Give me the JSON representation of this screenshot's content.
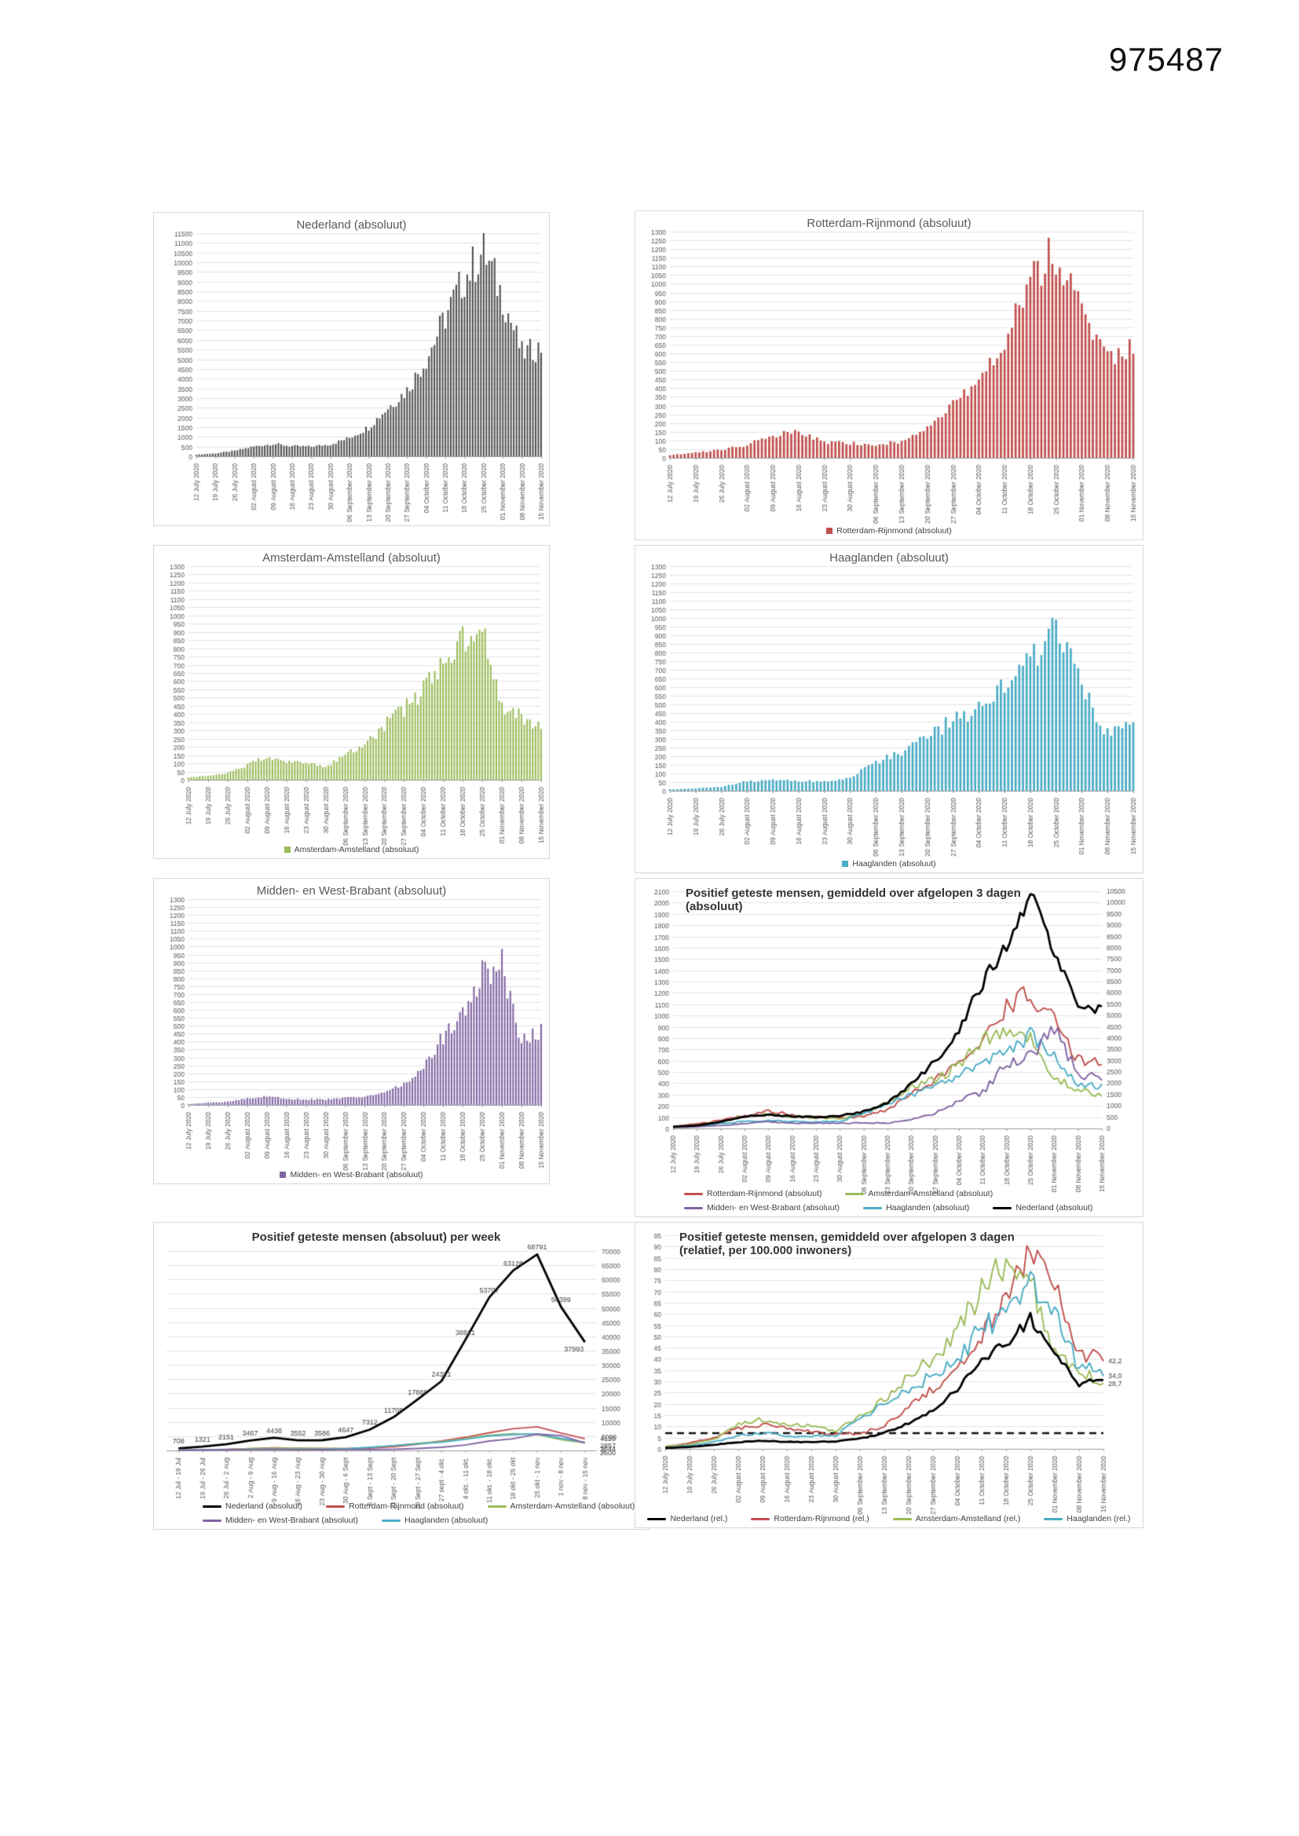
{
  "page": {
    "document_number": "975487"
  },
  "colors": {
    "nederland_bar": "#4d4d4d",
    "rotterdam": "#c0504d",
    "amsterdam": "#9bbb59",
    "haaglanden": "#4bacc6",
    "midden_west_brabant": "#8064a2",
    "nederland_line": "#000000",
    "gridline": "#e2e2e2",
    "axis_text": "#595959"
  },
  "chart_data": {
    "x_tick_labels_daily": [
      "12 July 2020",
      "19 July 2020",
      "26 July 2020",
      "02 August 2020",
      "09 August 2020",
      "16 August 2020",
      "23 August 2020",
      "30 August 2020",
      "06 September 2020",
      "13 September 2020",
      "20 September 2020",
      "27 September 2020",
      "04 October 2020",
      "11 October 2020",
      "18 October 2020",
      "25 October 2020",
      "01 November 2020",
      "08 November 2020",
      "15 November 2020"
    ],
    "x_tick_labels_weekly": [
      "12 Jul - 19 Jul",
      "19 Jul - 26 Jul",
      "26 Jul - 2 Aug",
      "2 Aug - 9 Aug",
      "9 Aug - 16 Aug",
      "16 Aug - 23 Aug",
      "23 Aug - 30 Aug",
      "30 Aug - 6 Sept",
      "6 Sept - 13 Sept",
      "13 Sept - 20 Sept",
      "20 Sept - 27 Sept",
      "27 sept - 4 okt.",
      "4 okt. - 11 okt.",
      "11 okt. - 18 okt.",
      "18 okt - 25 okt",
      "25 okt - 1 nov",
      "1 nov - 8 nov",
      "8 nov - 15 nov"
    ],
    "charts": [
      {
        "id": "nederland-absoluut",
        "type": "bar",
        "title": "Nederland (absoluut)",
        "y_axis": {
          "min": 0,
          "max": 11500,
          "step": 500,
          "side": "left"
        },
        "x_labels": "daily",
        "legend": [],
        "series": [
          {
            "name": "Nederland (absoluut)",
            "color_key": "nederland_bar",
            "weekly_anchor_values": [
              80,
              150,
              280,
              500,
              640,
              520,
              500,
              620,
              950,
              1500,
              2500,
              3400,
              5000,
              7200,
              9200,
              10600,
              8200,
              5300,
              5600
            ]
          }
        ]
      },
      {
        "id": "rotterdam-rijnmond-absoluut",
        "type": "bar",
        "title": "Rotterdam-Rijnmond (absoluut)",
        "y_axis": {
          "min": 0,
          "max": 1300,
          "step": 50,
          "side": "left"
        },
        "x_labels": "daily",
        "legend": [
          {
            "label": "Rotterdam-Rijnmond (absoluut)",
            "color_key": "rotterdam",
            "shape": "square"
          }
        ],
        "series": [
          {
            "name": "Rotterdam-Rijnmond (absoluut)",
            "color_key": "rotterdam",
            "weekly_anchor_values": [
              15,
              30,
              45,
              75,
              130,
              150,
              90,
              85,
              75,
              95,
              170,
              330,
              460,
              700,
              1020,
              1180,
              920,
              560,
              640
            ]
          }
        ]
      },
      {
        "id": "amsterdam-amstelland-absoluut",
        "type": "bar",
        "title": "Amsterdam-Amstelland (absoluut)",
        "y_axis": {
          "min": 0,
          "max": 1300,
          "step": 50,
          "side": "left"
        },
        "x_labels": "daily",
        "legend": [
          {
            "label": "Amsterdam-Amstelland (absoluut)",
            "color_key": "amsterdam",
            "shape": "square"
          }
        ],
        "series": [
          {
            "name": "Amsterdam-Amstelland (absoluut)",
            "color_key": "amsterdam",
            "weekly_anchor_values": [
              15,
              25,
              40,
              90,
              140,
              115,
              100,
              80,
              150,
              210,
              330,
              430,
              550,
              720,
              850,
              930,
              450,
              380,
              330
            ]
          }
        ]
      },
      {
        "id": "haaglanden-absoluut",
        "type": "bar",
        "title": "Haaglanden (absoluut)",
        "y_axis": {
          "min": 0,
          "max": 1300,
          "step": 50,
          "side": "left"
        },
        "x_labels": "daily",
        "legend": [
          {
            "label": "Haaglanden (absoluut)",
            "color_key": "haaglanden",
            "shape": "square"
          }
        ],
        "series": [
          {
            "name": "Haaglanden (absoluut)",
            "color_key": "haaglanden",
            "weekly_anchor_values": [
              8,
              14,
              22,
              55,
              62,
              58,
              52,
              80,
              160,
              230,
              300,
              420,
              480,
              640,
              760,
              950,
              600,
              330,
              380
            ]
          }
        ]
      },
      {
        "id": "midden-west-brabant-absoluut",
        "type": "bar",
        "title": "Midden- en West-Brabant (absoluut)",
        "y_axis": {
          "min": 0,
          "max": 1300,
          "step": 50,
          "side": "left"
        },
        "x_labels": "daily",
        "legend": [
          {
            "label": "Midden- en West-Brabant (absoluut)",
            "color_key": "midden_west_brabant",
            "shape": "square"
          }
        ],
        "series": [
          {
            "name": "Midden- en West-Brabant (absoluut)",
            "color_key": "midden_west_brabant",
            "weekly_anchor_values": [
              5,
              14,
              20,
              40,
              55,
              38,
              35,
              35,
              45,
              50,
              80,
              135,
              240,
              430,
              560,
              840,
              890,
              400,
              470
            ]
          }
        ]
      },
      {
        "id": "gemiddeld-3-dagen-absoluut",
        "type": "line-daily",
        "title": "Positief geteste mensen, gemiddeld over afgelopen 3 dagen",
        "subtitle": "(absoluut)",
        "y_axis": {
          "min": 0,
          "max": 2100,
          "step": 100,
          "side": "left"
        },
        "y_axis_right": {
          "min": 0,
          "max": 10500,
          "step": 500
        },
        "x_labels": "daily",
        "legend": [
          {
            "label": "Rotterdam-Rijnmond (absoluut)",
            "color_key": "rotterdam",
            "shape": "line"
          },
          {
            "label": "Amsterdam-Amstelland (absoluut)",
            "color_key": "amsterdam",
            "shape": "line"
          },
          {
            "label": "Midden- en West-Brabant (absoluut)",
            "color_key": "midden_west_brabant",
            "shape": "line"
          },
          {
            "label": "Haaglanden (absoluut)",
            "color_key": "haaglanden",
            "shape": "line"
          },
          {
            "label": "Nederland (absoluut)",
            "color_key": "nederland_line",
            "shape": "line"
          }
        ],
        "series": [
          {
            "name": "Rotterdam-Rijnmond (absoluut)",
            "color_key": "rotterdam",
            "axis": "left",
            "weekly_anchor_values": [
              20,
              40,
              70,
              115,
              155,
              120,
              100,
              95,
              105,
              165,
              300,
              430,
              560,
              800,
              1060,
              1190,
              1000,
              600,
              570
            ]
          },
          {
            "name": "Amsterdam-Amstelland (absoluut)",
            "color_key": "amsterdam",
            "axis": "left",
            "weekly_anchor_values": [
              15,
              30,
              60,
              110,
              125,
              108,
              95,
              85,
              145,
              230,
              380,
              430,
              560,
              790,
              900,
              790,
              450,
              340,
              300
            ]
          },
          {
            "name": "Haaglanden (absoluut)",
            "color_key": "haaglanden",
            "axis": "left",
            "weekly_anchor_values": [
              10,
              20,
              45,
              62,
              70,
              62,
              56,
              62,
              130,
              215,
              300,
              380,
              450,
              610,
              660,
              830,
              640,
              390,
              380
            ]
          },
          {
            "name": "Midden- en West-Brabant (absoluut)",
            "color_key": "midden_west_brabant",
            "axis": "left",
            "weekly_anchor_values": [
              8,
              15,
              25,
              45,
              58,
              46,
              48,
              45,
              50,
              48,
              78,
              135,
              250,
              320,
              580,
              640,
              880,
              470,
              460
            ]
          },
          {
            "name": "Nederland (absoluut)",
            "color_key": "nederland_line",
            "axis": "right",
            "thick": true,
            "weekly_anchor_values": [
              75,
              130,
              300,
              520,
              620,
              530,
              500,
              560,
              750,
              1150,
              1950,
              2950,
              4400,
              6500,
              8200,
              10300,
              7800,
              5200,
              5400
            ]
          }
        ]
      },
      {
        "id": "per-week-absoluut",
        "type": "line-weekly",
        "title": "Positief geteste mensen (absoluut) per week",
        "y_axis": {
          "min": 0,
          "max": 70000,
          "step": 5000,
          "side": "right"
        },
        "x_labels": "weekly",
        "legend": [
          {
            "label": "Nederland (absoluut)",
            "color_key": "nederland_line",
            "shape": "line"
          },
          {
            "label": "Rotterdam-Rijnmond (absoluut)",
            "color_key": "rotterdam",
            "shape": "line"
          },
          {
            "label": "Amsterdam-Amstelland (absoluut)",
            "color_key": "amsterdam",
            "shape": "line"
          },
          {
            "label": "Midden- en West-Brabant (absoluut)",
            "color_key": "midden_west_brabant",
            "shape": "line"
          },
          {
            "label": "Haaglanden (absoluut)",
            "color_key": "haaglanden",
            "shape": "line"
          }
        ],
        "series": [
          {
            "name": "Nederland (absoluut)",
            "color_key": "nederland_line",
            "thick": true,
            "values": [
              708,
              1321,
              2151,
              3467,
              4438,
              3552,
              3586,
              4647,
              7312,
              11705,
              17888,
              24321,
              38821,
              53707,
              63128,
              68791,
              50399,
              37993
            ],
            "point_labels": [
              "708",
              "1321",
              "2151",
              "3467",
              "4438",
              "3552",
              "3586",
              "4647",
              "7312",
              "11705",
              "17888",
              "24321",
              "38821",
              "53707",
              "63128",
              "68791",
              "50399",
              "37993"
            ]
          },
          {
            "name": "Rotterdam-Rijnmond (absoluut)",
            "color_key": "rotterdam",
            "end_label": "4120",
            "values": [
              100,
              200,
              350,
              600,
              900,
              800,
              700,
              650,
              800,
              1300,
              2200,
              3300,
              4600,
              6200,
              7600,
              8300,
              6100,
              4120
            ]
          },
          {
            "name": "Amsterdam-Amstelland (absoluut)",
            "color_key": "amsterdam",
            "end_label": "2644",
            "values": [
              90,
              180,
              300,
              650,
              800,
              750,
              650,
              600,
              1000,
              1700,
              2500,
              3100,
              4100,
              5300,
              5900,
              5600,
              3800,
              2644
            ]
          },
          {
            "name": "Haaglanden (absoluut)",
            "color_key": "haaglanden",
            "end_label": "2857",
            "values": [
              60,
              120,
              250,
              400,
              450,
              420,
              400,
              550,
              1100,
              1700,
              2300,
              2900,
              3900,
              5100,
              5600,
              5800,
              4200,
              2857
            ]
          },
          {
            "name": "Midden- en West-Brabant (absoluut)",
            "color_key": "midden_west_brabant",
            "end_label": "2600",
            "values": [
              50,
              100,
              200,
              300,
              350,
              280,
              270,
              300,
              350,
              400,
              700,
              1100,
              1900,
              3300,
              4100,
              5700,
              5200,
              2600
            ]
          }
        ]
      },
      {
        "id": "gemiddeld-3-dagen-relatief",
        "type": "line-daily",
        "title": "Positief geteste mensen, gemiddeld over afgelopen 3 dagen",
        "subtitle": "(relatief, per 100.000 inwoners)",
        "y_axis": {
          "min": 0,
          "max": 95,
          "step": 5,
          "side": "left"
        },
        "x_labels": "daily",
        "threshold": {
          "value": 7,
          "style": "dashed",
          "color": "#111111"
        },
        "legend": [
          {
            "label": "Nederland (rel.)",
            "color_key": "nederland_line",
            "shape": "line"
          },
          {
            "label": "Rotterdam-Rijnmond (rel.)",
            "color_key": "rotterdam",
            "shape": "line"
          },
          {
            "label": "Amsterdam-Amstelland (rel.)",
            "color_key": "amsterdam",
            "shape": "line"
          },
          {
            "label": "Haaglanden (rel.)",
            "color_key": "haaglanden",
            "shape": "line"
          }
        ],
        "series": [
          {
            "name": "Rotterdam-Rijnmond (rel.)",
            "color_key": "rotterdam",
            "end_label": "42,2",
            "weekly_anchor_values": [
              1,
              2.5,
              5,
              9,
              11,
              9,
              7.5,
              6.5,
              7,
              10,
              18,
              27,
              36,
              50,
              65,
              90,
              72,
              42,
              42.2
            ]
          },
          {
            "name": "Amsterdam-Amstelland (rel.)",
            "color_key": "amsterdam",
            "end_label": "28,7",
            "weekly_anchor_values": [
              1,
              2,
              4,
              11,
              13,
              11,
              10,
              8,
              14,
              22,
              33,
              40,
              53,
              70,
              84,
              76,
              42,
              35,
              28.7
            ]
          },
          {
            "name": "Haaglanden (rel.)",
            "color_key": "haaglanden",
            "end_label": "34,0",
            "weekly_anchor_values": [
              0.5,
              1.5,
              3,
              6,
              7,
              6,
              5.5,
              6,
              13,
              20,
              26,
              33,
              38,
              55,
              58,
              74,
              60,
              36,
              34
            ]
          },
          {
            "name": "Nederland (rel.)",
            "color_key": "nederland_line",
            "thick": true,
            "weekly_anchor_values": [
              0.4,
              0.8,
              1.8,
              3,
              3.6,
              3.1,
              3,
              3.3,
              4.5,
              7,
              11.5,
              17.5,
              26,
              40,
              47,
              58,
              44,
              29,
              31.5
            ]
          }
        ]
      }
    ]
  }
}
